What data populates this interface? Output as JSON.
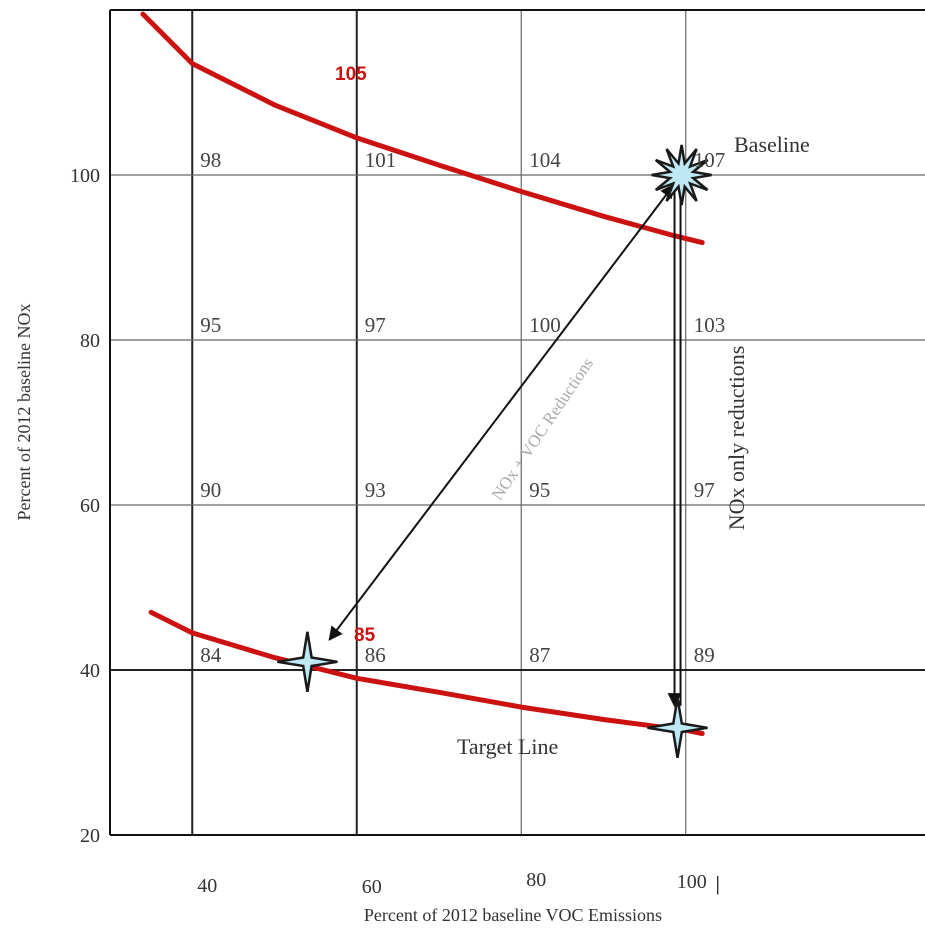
{
  "chart_data": {
    "type": "line",
    "title": "",
    "xlabel": "Percent of 2012 baseline VOC Emissions",
    "ylabel": "Percent of 2012 baseline NOx",
    "xlim": [
      30,
      120
    ],
    "ylim": [
      20,
      120
    ],
    "x_ticks": [
      40,
      60,
      80,
      100
    ],
    "y_ticks": [
      20,
      40,
      60,
      80,
      100
    ],
    "grid": true,
    "grid_values": [
      {
        "x": 40,
        "y": 100,
        "label": "98"
      },
      {
        "x": 60,
        "y": 100,
        "label": "101"
      },
      {
        "x": 80,
        "y": 100,
        "label": "104"
      },
      {
        "x": 100,
        "y": 100,
        "label": "107"
      },
      {
        "x": 40,
        "y": 80,
        "label": "95"
      },
      {
        "x": 60,
        "y": 80,
        "label": "97"
      },
      {
        "x": 80,
        "y": 80,
        "label": "100"
      },
      {
        "x": 100,
        "y": 80,
        "label": "103"
      },
      {
        "x": 40,
        "y": 60,
        "label": "90"
      },
      {
        "x": 60,
        "y": 60,
        "label": "93"
      },
      {
        "x": 80,
        "y": 60,
        "label": "95"
      },
      {
        "x": 100,
        "y": 60,
        "label": "97"
      },
      {
        "x": 40,
        "y": 40,
        "label": "84"
      },
      {
        "x": 60,
        "y": 40,
        "label": "86"
      },
      {
        "x": 80,
        "y": 40,
        "label": "87"
      },
      {
        "x": 100,
        "y": 40,
        "label": "89"
      }
    ],
    "series": [
      {
        "name": "105",
        "color": "#cc1111",
        "x": [
          34,
          40,
          50,
          60,
          70,
          80,
          90,
          98,
          102
        ],
        "y": [
          119.5,
          113.5,
          108.5,
          104.5,
          101.2,
          98.0,
          95.0,
          92.8,
          91.8
        ]
      },
      {
        "name": "85",
        "color": "#cc1111",
        "x": [
          35,
          40,
          50,
          60,
          70,
          80,
          90,
          100,
          102
        ],
        "y": [
          47.0,
          44.5,
          41.5,
          39.0,
          37.3,
          35.5,
          34.0,
          32.7,
          32.3
        ]
      }
    ],
    "points": [
      {
        "name": "Baseline",
        "x": 99.5,
        "y": 100,
        "label": "Baseline"
      },
      {
        "name": "NOx+VOC target",
        "x": 54,
        "y": 41,
        "label": ""
      },
      {
        "name": "NOx only target",
        "x": 99,
        "y": 33,
        "label": ""
      }
    ],
    "annotations": {
      "target_line": "Target Line",
      "nox_only": "NOx only reductions",
      "nox_voc": "NOx + VOC Reductions"
    },
    "x_extra_mark": "|"
  }
}
